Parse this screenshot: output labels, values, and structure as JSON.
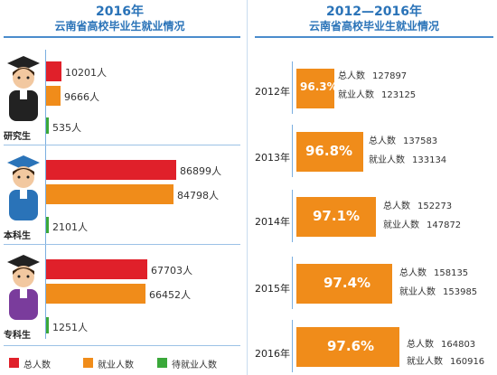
{
  "left": {
    "year_title": "2016年",
    "subtitle": "云南省高校毕业生就业情况"
  },
  "right": {
    "year_title": "2012—2016年",
    "subtitle": "云南省高校毕业生就业情况"
  },
  "legend": [
    "总人数",
    "就业人数",
    "待就业人数"
  ],
  "colors": {
    "total": "#e0202a",
    "employed": "#f08c1a",
    "waiting": "#3aa83a",
    "accent": "#2a73b8"
  },
  "chart_data": [
    {
      "type": "bar",
      "orientation": "horizontal",
      "categories": [
        "研究生",
        "本科生",
        "专科生"
      ],
      "series": [
        {
          "name": "总人数",
          "values": [
            10201,
            86899,
            67703
          ],
          "labels": [
            "10201人",
            "86899人",
            "67703人"
          ]
        },
        {
          "name": "就业人数",
          "values": [
            9666,
            84798,
            66452
          ],
          "labels": [
            "9666人",
            "84798人",
            "66452人"
          ]
        },
        {
          "name": "待就业人数",
          "values": [
            535,
            2101,
            1251
          ],
          "labels": [
            "535人",
            "2101人",
            "1251人"
          ]
        }
      ],
      "grid": false,
      "legend_position": "bottom"
    },
    {
      "type": "table",
      "rows": [
        {
          "year": "2012年",
          "rate": "96.3%",
          "total_label": "总人数",
          "total": "127897",
          "employed_label": "就业人数",
          "employed": "123125"
        },
        {
          "year": "2013年",
          "rate": "96.8%",
          "total_label": "总人数",
          "total": "137583",
          "employed_label": "就业人数",
          "employed": "133134"
        },
        {
          "year": "2014年",
          "rate": "97.1%",
          "total_label": "总人数",
          "total": "152273",
          "employed_label": "就业人数",
          "employed": "147872"
        },
        {
          "year": "2015年",
          "rate": "97.4%",
          "total_label": "总人数",
          "total": "158135",
          "employed_label": "就业人数",
          "employed": "153985"
        },
        {
          "year": "2016年",
          "rate": "97.6%",
          "total_label": "总人数",
          "total": "164803",
          "employed_label": "就业人数",
          "employed": "160916"
        }
      ]
    }
  ]
}
